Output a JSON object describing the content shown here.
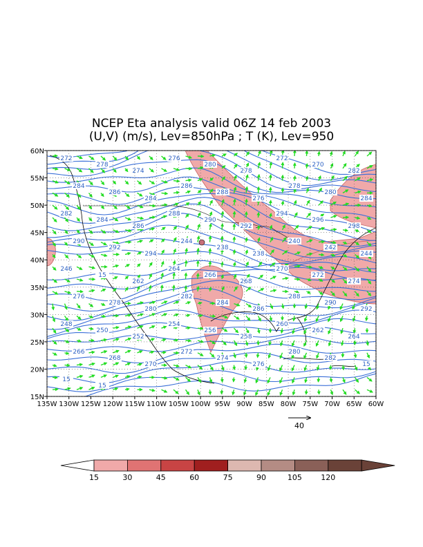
{
  "title": {
    "line1": "NCEP Eta analysis valid 06Z 14 feb 2003",
    "line2": "(U,V) (m/s), Lev=850hPa ; T (K), Lev=950"
  },
  "map": {
    "lat_labels": [
      "60N",
      "55N",
      "50N",
      "45N",
      "40N",
      "35N",
      "30N",
      "25N",
      "20N",
      "15N"
    ],
    "lon_labels": [
      "135W",
      "130W",
      "125W",
      "120W",
      "115W",
      "110W",
      "105W",
      "100W",
      "95W",
      "90W",
      "85W",
      "80W",
      "75W",
      "70W",
      "65W",
      "60W"
    ],
    "lat_range": [
      15,
      60
    ],
    "lon_range": [
      -135,
      -60
    ],
    "contour_labels": [
      "272",
      "278",
      "274",
      "276",
      "280",
      "278",
      "272",
      "270",
      "282",
      "284",
      "286",
      "284",
      "286",
      "288",
      "276",
      "278",
      "280",
      "284",
      "282",
      "284",
      "286",
      "288",
      "290",
      "292",
      "294",
      "296",
      "298",
      "290",
      "292",
      "294",
      "244",
      "238",
      "238",
      "240",
      "242",
      "244",
      "246",
      "15",
      "262",
      "264",
      "266",
      "268",
      "270",
      "272",
      "274",
      "276",
      "278",
      "280",
      "282",
      "284",
      "286",
      "288",
      "290",
      "292",
      "248",
      "250",
      "252",
      "254",
      "256",
      "258",
      "260",
      "262",
      "264",
      "266",
      "268",
      "270",
      "272",
      "274",
      "276",
      "280",
      "282",
      "15",
      "15",
      "15"
    ],
    "colors": {
      "contour": "#3a6fd8",
      "label": "#2f63c4",
      "wind": "#22dd22",
      "coast": "#000000",
      "shade15": "#f0a9a9",
      "grid": "#555555"
    }
  },
  "reference_vector": {
    "label": "40"
  },
  "colorbar": {
    "labels": [
      "15",
      "30",
      "45",
      "60",
      "75",
      "90",
      "105",
      "120"
    ],
    "colors": [
      "#f0a9a9",
      "#e07373",
      "#c84444",
      "#a01f1f",
      "#ddb8b0",
      "#b48c84",
      "#8a6058",
      "#6a4238"
    ]
  }
}
